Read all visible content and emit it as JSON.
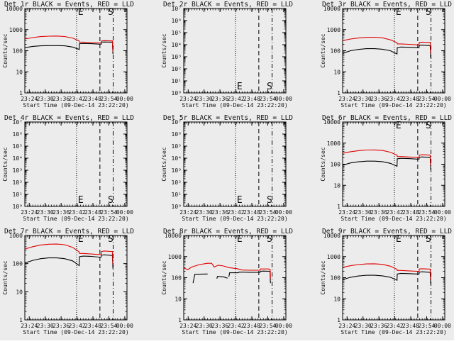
{
  "figure": {
    "xlabel": "Start Time (09-Dec-14 23:22:20)",
    "x_ticks": [
      "23:24",
      "23:30",
      "23:36",
      "23:42",
      "23:48",
      "23:54",
      "00:00"
    ],
    "x_tick_minutes": [
      1.67,
      7.67,
      13.67,
      19.67,
      25.67,
      31.67,
      37.67
    ],
    "xlim_minutes": [
      0,
      38.5
    ],
    "marker_E_minute": 19.5,
    "marker_S_minute": 31.0,
    "line1_minute": 28.3,
    "line2_minute": 33.3,
    "ylabel": "Counts/sec",
    "colors": {
      "events": "#000000",
      "lld": "#e00000",
      "background": "#ececec"
    }
  },
  "chart_data": [
    {
      "type": "line",
      "title": "Det 1r BLACK = Events, RED = LLD",
      "ylim": [
        1,
        10000
      ],
      "y_ticks": [
        "1",
        "10",
        "100",
        "1000",
        "10000"
      ],
      "series": [
        {
          "name": "Events",
          "color": "#000000",
          "segments": [
            [
              [
                0,
                140
              ],
              [
                3,
                160
              ],
              [
                6,
                170
              ],
              [
                9,
                175
              ],
              [
                12,
                175
              ],
              [
                15,
                170
              ],
              [
                18,
                150
              ],
              [
                20.5,
                115
              ],
              [
                20.6,
                215
              ],
              [
                22,
                220
              ],
              [
                25,
                215
              ],
              [
                28,
                205
              ],
              [
                28.8,
                205
              ],
              [
                28.9,
                255
              ],
              [
                30,
                260
              ],
              [
                33,
                255
              ],
              [
                33.2,
                70
              ]
            ]
          ]
        },
        {
          "name": "LLD",
          "color": "#e00000",
          "segments": [
            [
              [
                0,
                360
              ],
              [
                3,
                420
              ],
              [
                6,
                465
              ],
              [
                9,
                490
              ],
              [
                12,
                495
              ],
              [
                15,
                470
              ],
              [
                18,
                400
              ],
              [
                20.5,
                290
              ],
              [
                20.6,
                255
              ],
              [
                22,
                255
              ],
              [
                25,
                240
              ],
              [
                28,
                235
              ],
              [
                28.8,
                235
              ],
              [
                28.9,
                290
              ],
              [
                30,
                300
              ],
              [
                33,
                290
              ],
              [
                33.2,
                90
              ]
            ]
          ]
        }
      ]
    },
    {
      "type": "line",
      "title": "Det 2r BLACK = Events, RED = LLD",
      "ylim": [
        1,
        10000000
      ],
      "y_ticks": [
        "10⁰",
        "10¹",
        "10²",
        "10³",
        "10⁴",
        "10⁵",
        "10⁶",
        "10⁷"
      ],
      "series": []
    },
    {
      "type": "line",
      "title": "Det 3r BLACK = Events, RED = LLD",
      "ylim": [
        1,
        10000
      ],
      "y_ticks": [
        "1",
        "10",
        "100",
        "1000",
        "10000"
      ],
      "series": [
        {
          "name": "Events",
          "color": "#000000",
          "segments": [
            [
              [
                0,
                75
              ],
              [
                3,
                100
              ],
              [
                6,
                115
              ],
              [
                9,
                125
              ],
              [
                12,
                125
              ],
              [
                15,
                118
              ],
              [
                18,
                100
              ],
              [
                20.5,
                70
              ],
              [
                20.6,
                140
              ],
              [
                22,
                150
              ],
              [
                25,
                145
              ],
              [
                28,
                140
              ],
              [
                28.8,
                140
              ],
              [
                28.9,
                180
              ],
              [
                30,
                185
              ],
              [
                33,
                175
              ],
              [
                33.2,
                45
              ]
            ]
          ]
        },
        {
          "name": "LLD",
          "color": "#e00000",
          "segments": [
            [
              [
                0,
                300
              ],
              [
                3,
                360
              ],
              [
                6,
                400
              ],
              [
                9,
                430
              ],
              [
                12,
                435
              ],
              [
                15,
                410
              ],
              [
                18,
                330
              ],
              [
                20.5,
                240
              ],
              [
                20.6,
                210
              ],
              [
                22,
                210
              ],
              [
                25,
                200
              ],
              [
                28,
                190
              ],
              [
                28.8,
                190
              ],
              [
                28.9,
                250
              ],
              [
                30,
                255
              ],
              [
                33,
                245
              ],
              [
                33.2,
                75
              ]
            ]
          ]
        }
      ]
    },
    {
      "type": "line",
      "title": "Det 4r BLACK = Events, RED = LLD",
      "ylim": [
        1,
        10000000
      ],
      "y_ticks": [
        "10⁰",
        "10¹",
        "10²",
        "10³",
        "10⁴",
        "10⁵",
        "10⁶",
        "10⁷"
      ],
      "series": []
    },
    {
      "type": "line",
      "title": "Det 5r BLACK = Events, RED = LLD",
      "ylim": [
        1,
        10000000
      ],
      "y_ticks": [
        "10⁰",
        "10¹",
        "10²",
        "10³",
        "10⁴",
        "10⁵",
        "10⁶",
        "10⁷"
      ],
      "series": []
    },
    {
      "type": "line",
      "title": "Det 6r BLACK = Events, RED = LLD",
      "ylim": [
        1,
        10000
      ],
      "y_ticks": [
        "1",
        "10",
        "100",
        "1000",
        "10000"
      ],
      "series": [
        {
          "name": "Events",
          "color": "#000000",
          "segments": [
            [
              [
                0,
                90
              ],
              [
                3,
                115
              ],
              [
                6,
                130
              ],
              [
                9,
                140
              ],
              [
                12,
                140
              ],
              [
                15,
                132
              ],
              [
                18,
                110
              ],
              [
                20.5,
                80
              ],
              [
                20.6,
                180
              ],
              [
                22,
                190
              ],
              [
                25,
                185
              ],
              [
                28,
                175
              ],
              [
                28.8,
                175
              ],
              [
                28.9,
                215
              ],
              [
                30,
                220
              ],
              [
                33,
                210
              ],
              [
                33.2,
                55
              ]
            ]
          ]
        },
        {
          "name": "LLD",
          "color": "#e00000",
          "segments": [
            [
              [
                0,
                330
              ],
              [
                3,
                390
              ],
              [
                6,
                440
              ],
              [
                9,
                470
              ],
              [
                12,
                475
              ],
              [
                15,
                450
              ],
              [
                18,
                370
              ],
              [
                20.5,
                270
              ],
              [
                20.6,
                230
              ],
              [
                22,
                230
              ],
              [
                25,
                220
              ],
              [
                28,
                210
              ],
              [
                28.8,
                210
              ],
              [
                28.9,
                270
              ],
              [
                30,
                280
              ],
              [
                33,
                270
              ],
              [
                33.2,
                85
              ]
            ]
          ]
        }
      ]
    },
    {
      "type": "line",
      "title": "Det 7r BLACK = Events, RED = LLD",
      "ylim": [
        1,
        1000
      ],
      "y_ticks": [
        "1",
        "10",
        "100",
        "1000"
      ],
      "series": [
        {
          "name": "Events",
          "color": "#000000",
          "segments": [
            [
              [
                0,
                105
              ],
              [
                3,
                130
              ],
              [
                6,
                150
              ],
              [
                9,
                160
              ],
              [
                12,
                160
              ],
              [
                15,
                150
              ],
              [
                18,
                125
              ],
              [
                20.5,
                85
              ],
              [
                20.6,
                175
              ],
              [
                22,
                185
              ],
              [
                25,
                180
              ],
              [
                28,
                170
              ],
              [
                28.8,
                170
              ],
              [
                28.9,
                200
              ],
              [
                30,
                205
              ],
              [
                33,
                195
              ],
              [
                33.2,
                65
              ]
            ]
          ]
        },
        {
          "name": "LLD",
          "color": "#e00000",
          "segments": [
            [
              [
                0,
                330
              ],
              [
                3,
                400
              ],
              [
                6,
                460
              ],
              [
                9,
                490
              ],
              [
                12,
                495
              ],
              [
                15,
                470
              ],
              [
                18,
                380
              ],
              [
                20.5,
                260
              ],
              [
                20.6,
                230
              ],
              [
                22,
                230
              ],
              [
                25,
                220
              ],
              [
                28,
                210
              ],
              [
                28.8,
                210
              ],
              [
                28.9,
                270
              ],
              [
                30,
                280
              ],
              [
                33,
                270
              ],
              [
                33.2,
                90
              ]
            ]
          ]
        }
      ]
    },
    {
      "type": "line",
      "title": "Det 8r BLACK = Events, RED = LLD",
      "ylim": [
        1,
        10000
      ],
      "y_ticks": [
        "1",
        "10",
        "100",
        "1000",
        "10000"
      ],
      "series": [
        {
          "name": "Events",
          "color": "#000000",
          "segments": [
            [
              [
                3.5,
                55
              ],
              [
                4.2,
                145
              ],
              [
                9,
                150
              ]
            ],
            [
              [
                12.5,
                90
              ],
              [
                12.7,
                115
              ],
              [
                15,
                110
              ],
              [
                16.5,
                95
              ]
            ],
            [
              [
                17,
                110
              ],
              [
                17.3,
                170
              ],
              [
                20.6,
                170
              ],
              [
                20.8,
                185
              ],
              [
                25,
                180
              ],
              [
                28.8,
                180
              ],
              [
                28.9,
                200
              ],
              [
                30,
                205
              ],
              [
                32.5,
                200
              ],
              [
                32.7,
                55
              ]
            ]
          ]
        },
        {
          "name": "LLD",
          "color": "#e00000",
          "segments": [
            [
              [
                0,
                290
              ],
              [
                1.5,
                240
              ],
              [
                3,
                320
              ],
              [
                6,
                420
              ],
              [
                9,
                480
              ],
              [
                10.5,
                480
              ],
              [
                11.5,
                320
              ],
              [
                13,
                390
              ],
              [
                15,
                360
              ],
              [
                17,
                300
              ],
              [
                20,
                270
              ],
              [
                22,
                230
              ],
              [
                25,
                225
              ],
              [
                28.8,
                225
              ],
              [
                28.9,
                260
              ],
              [
                32,
                260
              ],
              [
                32.6,
                240
              ],
              [
                32.7,
                90
              ]
            ]
          ]
        }
      ]
    },
    {
      "type": "line",
      "title": "Det 9r BLACK = Events, RED = LLD",
      "ylim": [
        1,
        10000
      ],
      "y_ticks": [
        "1",
        "10",
        "100",
        "1000",
        "10000"
      ],
      "series": [
        {
          "name": "Events",
          "color": "#000000",
          "segments": [
            [
              [
                0,
                80
              ],
              [
                3,
                105
              ],
              [
                6,
                120
              ],
              [
                9,
                130
              ],
              [
                12,
                130
              ],
              [
                15,
                122
              ],
              [
                18,
                105
              ],
              [
                20.5,
                75
              ],
              [
                20.6,
                150
              ],
              [
                22,
                160
              ],
              [
                25,
                155
              ],
              [
                28,
                150
              ],
              [
                28.8,
                150
              ],
              [
                28.9,
                185
              ],
              [
                30,
                190
              ],
              [
                33,
                180
              ],
              [
                33.2,
                50
              ]
            ]
          ]
        },
        {
          "name": "LLD",
          "color": "#e00000",
          "segments": [
            [
              [
                0,
                310
              ],
              [
                3,
                370
              ],
              [
                6,
                420
              ],
              [
                9,
                450
              ],
              [
                12,
                455
              ],
              [
                15,
                430
              ],
              [
                18,
                350
              ],
              [
                20.5,
                250
              ],
              [
                20.6,
                220
              ],
              [
                22,
                220
              ],
              [
                25,
                210
              ],
              [
                28,
                200
              ],
              [
                28.8,
                200
              ],
              [
                28.9,
                260
              ],
              [
                30,
                265
              ],
              [
                33,
                255
              ],
              [
                33.2,
                80
              ]
            ]
          ]
        }
      ]
    }
  ]
}
